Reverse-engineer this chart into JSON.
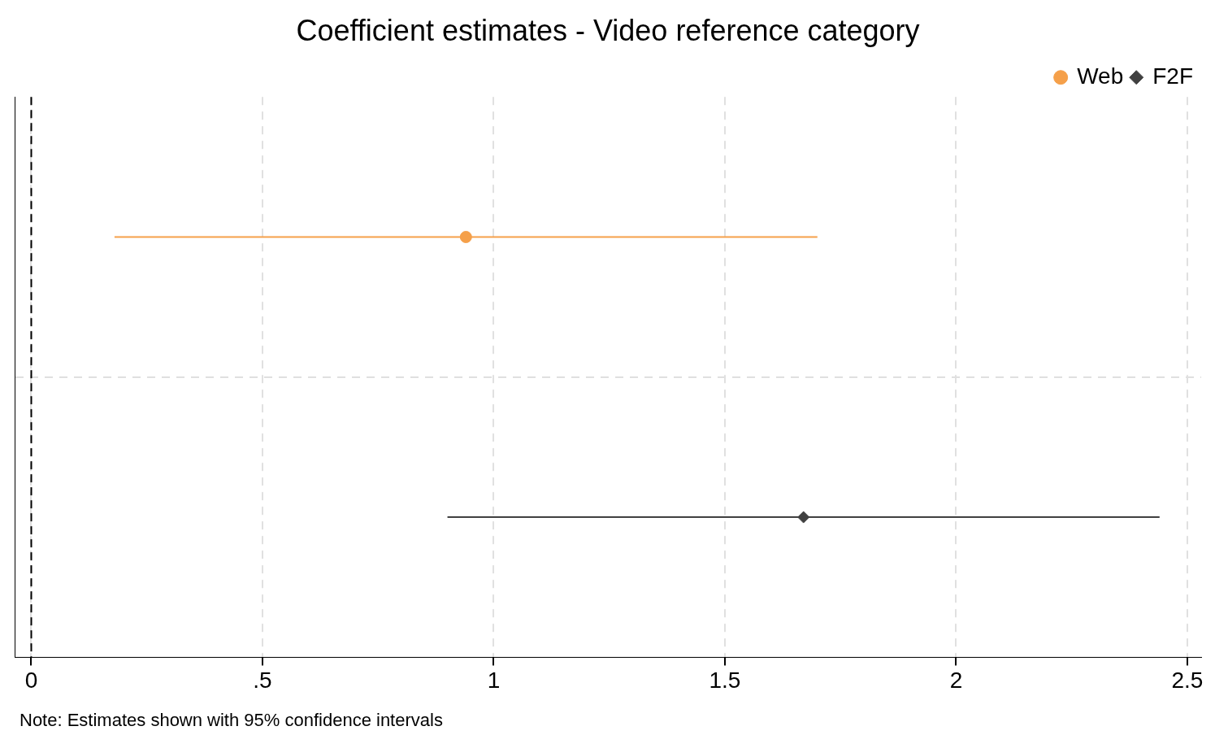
{
  "chart_data": {
    "type": "scatter",
    "orientation": "horizontal",
    "title": "Coefficient estimates - Video reference category",
    "categories": [
      null,
      null
    ],
    "series": [
      {
        "name": "Web",
        "color": "#f5a04a",
        "marker": "circle",
        "values": [
          0.94,
          null
        ],
        "errors": [
          [
            0.18,
            1.7
          ],
          null
        ]
      },
      {
        "name": "F2F",
        "color": "#404040",
        "marker": "diamond",
        "values": [
          null,
          1.67
        ],
        "errors": [
          null,
          [
            0.9,
            2.44
          ]
        ]
      }
    ],
    "xlim": [
      -0.036,
      2.53
    ],
    "xticks": [
      0,
      {
        "value": 0.5,
        "label": ".5"
      },
      1,
      1.5,
      2,
      2.5
    ],
    "ref_lines": [
      {
        "axis": "x",
        "value": 0,
        "color": "#000000",
        "line_style": "dashed"
      }
    ],
    "grid": true,
    "legend": "top right",
    "annotations": [
      "Note: Estimates shown with 95% confidence intervals"
    ]
  }
}
